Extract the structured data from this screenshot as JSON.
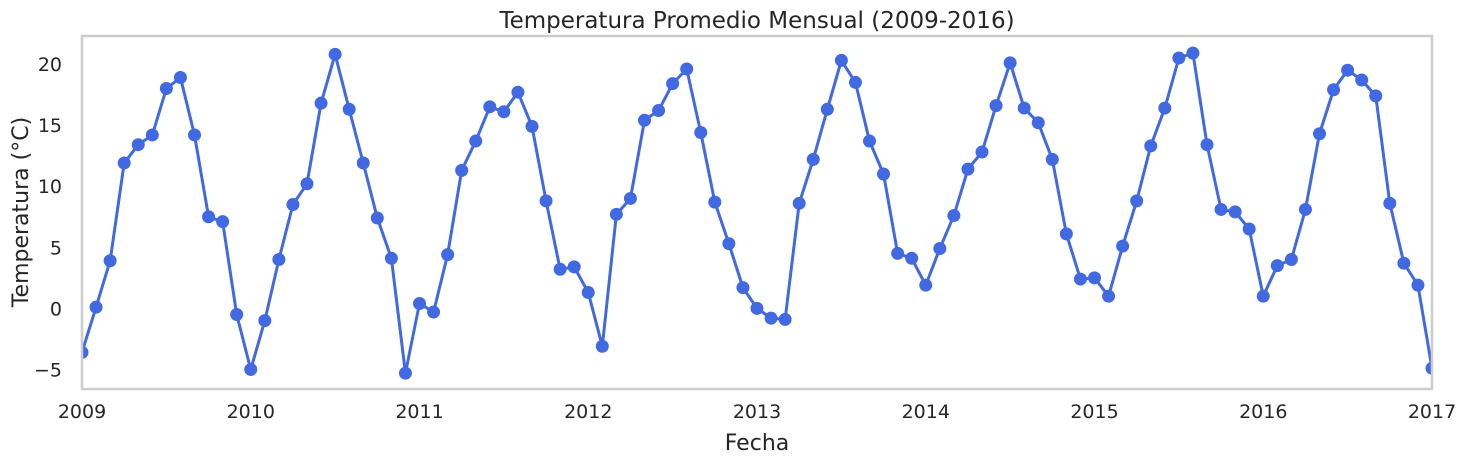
{
  "chart_data": {
    "type": "line",
    "title": "Temperatura Promedio Mensual (2009-2016)",
    "xlabel": "Fecha",
    "ylabel": "Temperatura (°C)",
    "xlim": [
      "2009-01",
      "2017-01"
    ],
    "ylim": [
      -6.6,
      22.3
    ],
    "x_ticks": [
      "2009",
      "2010",
      "2011",
      "2012",
      "2013",
      "2014",
      "2015",
      "2016",
      "2017"
    ],
    "y_ticks": [
      -5,
      0,
      5,
      10,
      15,
      20
    ],
    "grid": false,
    "legend": "none",
    "series": [
      {
        "color": "#4169e1",
        "marker": "circle",
        "points": [
          [
            "2009-01",
            -3.6
          ],
          [
            "2009-02",
            0.1
          ],
          [
            "2009-03",
            3.9
          ],
          [
            "2009-04",
            11.9
          ],
          [
            "2009-05",
            13.4
          ],
          [
            "2009-06",
            14.2
          ],
          [
            "2009-07",
            18.0
          ],
          [
            "2009-08",
            18.9
          ],
          [
            "2009-09",
            14.2
          ],
          [
            "2009-10",
            7.5
          ],
          [
            "2009-11",
            7.1
          ],
          [
            "2009-12",
            -0.5
          ],
          [
            "2010-01",
            -5.0
          ],
          [
            "2010-02",
            -1.0
          ],
          [
            "2010-03",
            4.0
          ],
          [
            "2010-04",
            8.5
          ],
          [
            "2010-05",
            10.2
          ],
          [
            "2010-06",
            16.8
          ],
          [
            "2010-07",
            20.8
          ],
          [
            "2010-08",
            16.3
          ],
          [
            "2010-09",
            11.9
          ],
          [
            "2010-10",
            7.4
          ],
          [
            "2010-11",
            4.1
          ],
          [
            "2010-12",
            -5.3
          ],
          [
            "2011-01",
            0.4
          ],
          [
            "2011-02",
            -0.3
          ],
          [
            "2011-03",
            4.4
          ],
          [
            "2011-04",
            11.3
          ],
          [
            "2011-05",
            13.7
          ],
          [
            "2011-06",
            16.5
          ],
          [
            "2011-07",
            16.1
          ],
          [
            "2011-08",
            17.7
          ],
          [
            "2011-09",
            14.9
          ],
          [
            "2011-10",
            8.8
          ],
          [
            "2011-11",
            3.2
          ],
          [
            "2011-12",
            3.4
          ],
          [
            "2012-01",
            1.3
          ],
          [
            "2012-02",
            -3.1
          ],
          [
            "2012-03",
            7.7
          ],
          [
            "2012-04",
            9.0
          ],
          [
            "2012-05",
            15.4
          ],
          [
            "2012-06",
            16.2
          ],
          [
            "2012-07",
            18.4
          ],
          [
            "2012-08",
            19.6
          ],
          [
            "2012-09",
            14.4
          ],
          [
            "2012-10",
            8.7
          ],
          [
            "2012-11",
            5.3
          ],
          [
            "2012-12",
            1.7
          ],
          [
            "2013-01",
            0.0
          ],
          [
            "2013-02",
            -0.8
          ],
          [
            "2013-03",
            -0.9
          ],
          [
            "2013-04",
            8.6
          ],
          [
            "2013-05",
            12.2
          ],
          [
            "2013-06",
            16.3
          ],
          [
            "2013-07",
            20.3
          ],
          [
            "2013-08",
            18.5
          ],
          [
            "2013-09",
            13.7
          ],
          [
            "2013-10",
            11.0
          ],
          [
            "2013-11",
            4.5
          ],
          [
            "2013-12",
            4.1
          ],
          [
            "2014-01",
            1.9
          ],
          [
            "2014-02",
            4.9
          ],
          [
            "2014-03",
            7.6
          ],
          [
            "2014-04",
            11.4
          ],
          [
            "2014-05",
            12.8
          ],
          [
            "2014-06",
            16.6
          ],
          [
            "2014-07",
            20.1
          ],
          [
            "2014-08",
            16.4
          ],
          [
            "2014-09",
            15.2
          ],
          [
            "2014-10",
            12.2
          ],
          [
            "2014-11",
            6.1
          ],
          [
            "2014-12",
            2.4
          ],
          [
            "2015-01",
            2.5
          ],
          [
            "2015-02",
            1.0
          ],
          [
            "2015-03",
            5.1
          ],
          [
            "2015-04",
            8.8
          ],
          [
            "2015-05",
            13.3
          ],
          [
            "2015-06",
            16.4
          ],
          [
            "2015-07",
            20.5
          ],
          [
            "2015-08",
            20.9
          ],
          [
            "2015-09",
            13.4
          ],
          [
            "2015-10",
            8.1
          ],
          [
            "2015-11",
            7.9
          ],
          [
            "2015-12",
            6.5
          ],
          [
            "2016-01",
            1.0
          ],
          [
            "2016-02",
            3.5
          ],
          [
            "2016-03",
            4.0
          ],
          [
            "2016-04",
            8.1
          ],
          [
            "2016-05",
            14.3
          ],
          [
            "2016-06",
            17.9
          ],
          [
            "2016-07",
            19.5
          ],
          [
            "2016-08",
            18.7
          ],
          [
            "2016-09",
            17.4
          ],
          [
            "2016-10",
            8.6
          ],
          [
            "2016-11",
            3.7
          ],
          [
            "2016-12",
            1.9
          ],
          [
            "2017-01",
            -4.9
          ]
        ]
      }
    ]
  }
}
